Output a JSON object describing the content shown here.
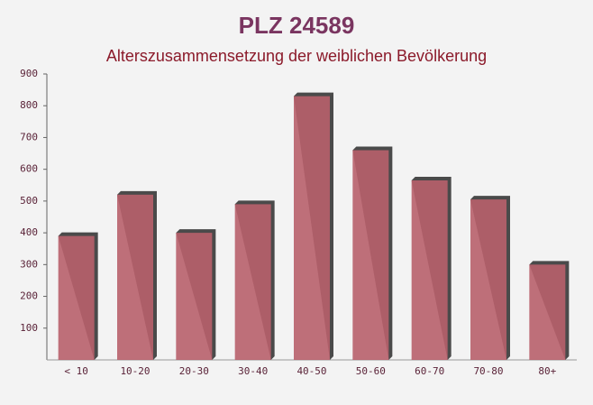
{
  "chart_data": {
    "type": "bar",
    "title": "PLZ 24589",
    "subtitle": "Alterszusammensetzung der weiblichen Bevölkerung",
    "categories": [
      "< 10",
      "10-20",
      "20-30",
      "30-40",
      "40-50",
      "50-60",
      "60-70",
      "70-80",
      "80+"
    ],
    "values": [
      390,
      520,
      400,
      490,
      830,
      660,
      565,
      505,
      300
    ],
    "color": "#b8606c",
    "ylim": [
      0,
      900
    ],
    "yticks": [
      100,
      200,
      300,
      400,
      500,
      600,
      700,
      800,
      900
    ],
    "grid": false
  }
}
